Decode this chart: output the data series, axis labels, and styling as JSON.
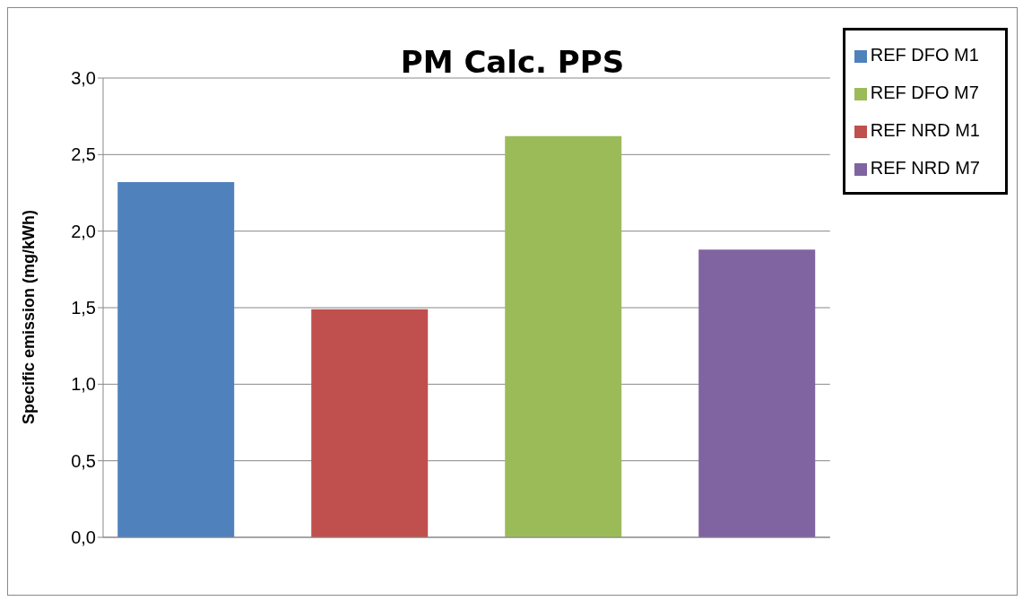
{
  "chart_data": {
    "type": "bar",
    "title": "PM Calc. PPS",
    "ylabel": "Specific emission (mg/kWh)",
    "categories": [
      null
    ],
    "series": [
      {
        "name": "REF DFO M1",
        "color": "#4f81bd",
        "values": [
          2.32
        ]
      },
      {
        "name": "REF NRD M1",
        "color": "#c0504d",
        "values": [
          1.49
        ]
      },
      {
        "name": "REF DFO M7",
        "color": "#9bbb59",
        "values": [
          2.62
        ]
      },
      {
        "name": "REF NRD M7",
        "color": "#8064a2",
        "values": [
          1.88
        ]
      }
    ],
    "ylim": [
      0,
      3
    ],
    "yticks": [
      {
        "value": 0,
        "label": "0,0"
      },
      {
        "value": 0.5,
        "label": "0,5"
      },
      {
        "value": 1,
        "label": "1,0"
      },
      {
        "value": 1.5,
        "label": "1,5"
      },
      {
        "value": 2,
        "label": "2,0"
      },
      {
        "value": 2.5,
        "label": "2,5"
      },
      {
        "value": 3,
        "label": "3,0"
      }
    ],
    "grid": "y",
    "legend": "top right"
  }
}
